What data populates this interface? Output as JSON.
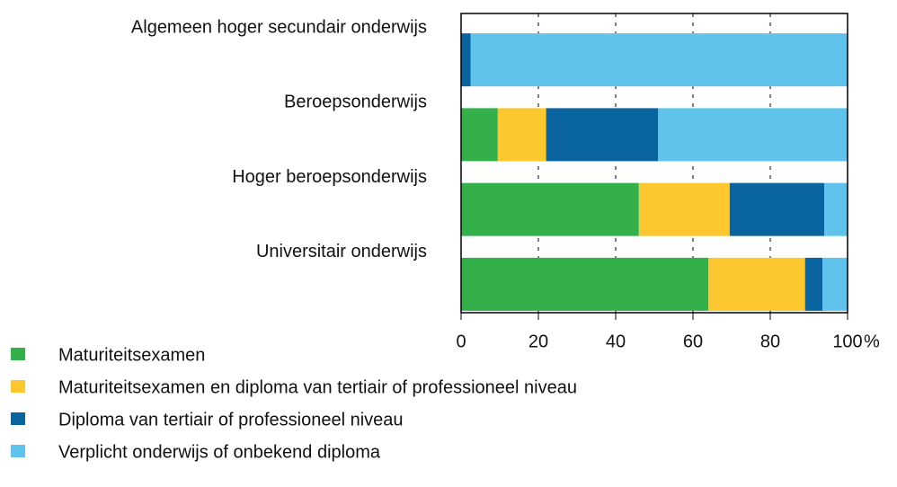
{
  "chart_data": {
    "type": "bar",
    "orientation": "horizontal",
    "stacked": true,
    "categories": [
      "Algemeen hoger secundair onderwijs",
      "Beroepsonderwijs",
      "Hoger beroepsonderwijs",
      "Universitair onderwijs"
    ],
    "series": [
      {
        "name": "Maturiteitsexamen",
        "color": "#33b04a",
        "values": [
          0,
          9.5,
          46,
          64
        ]
      },
      {
        "name": "Maturiteitsexamen en diploma van tertiair of professioneel niveau",
        "color": "#fdc82f",
        "values": [
          0,
          12.5,
          23.5,
          25
        ]
      },
      {
        "name": "Diploma van tertiair of professioneel niveau",
        "color": "#0a64a0",
        "values": [
          2.5,
          29,
          24.5,
          4.5
        ]
      },
      {
        "name": "Verplicht onderwijs of onbekend diploma",
        "color": "#5fc3ec",
        "values": [
          97.5,
          49,
          6,
          6.5
        ]
      }
    ],
    "xlim": [
      0,
      100
    ],
    "xticks": [
      0,
      20,
      40,
      60,
      80,
      100
    ],
    "xlabel": "%",
    "grid": true,
    "legend": "bottom"
  }
}
